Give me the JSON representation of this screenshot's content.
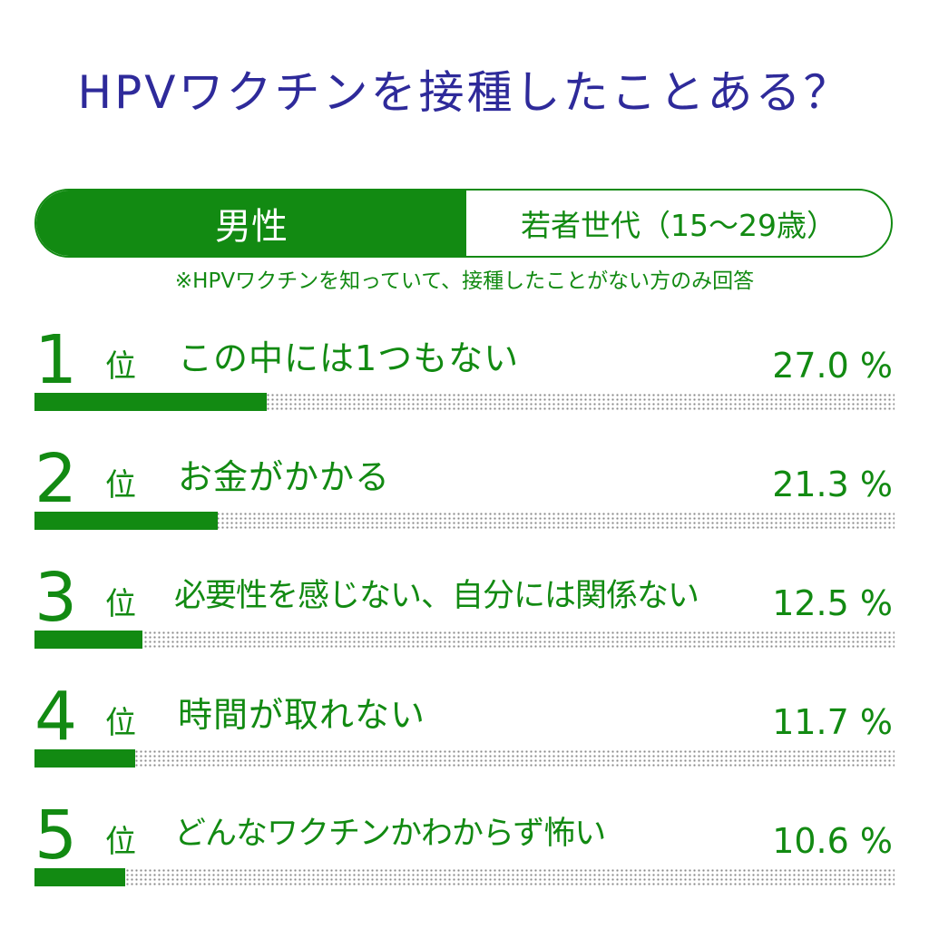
{
  "title": "HPVワクチンを接種したことある？",
  "segment": {
    "gender": "男性",
    "generation": "若者世代（15〜29歳）"
  },
  "note": "※HPVワクチンを知っていて、接種したことがない方のみ回答",
  "colors": {
    "accent": "#128a12",
    "title": "#2e2a9a",
    "dots": "#8a8a8a"
  },
  "rank_unit": "位",
  "chart_data": {
    "type": "bar",
    "orientation": "horizontal",
    "title": "HPVワクチンを接種したことある？",
    "categories": [
      "この中には1つもない",
      "お金がかかる",
      "必要性を感じない、自分には関係ない",
      "時間が取れない",
      "どんなワクチンかわからず怖い"
    ],
    "ranks": [
      "1",
      "2",
      "3",
      "4",
      "5"
    ],
    "values": [
      27.0,
      21.3,
      12.5,
      11.7,
      10.6
    ],
    "labels": [
      "27.0 %",
      "21.3 %",
      "12.5 %",
      "11.7 %",
      "10.6 %"
    ],
    "unit": "%",
    "xlim": [
      0,
      100
    ]
  }
}
